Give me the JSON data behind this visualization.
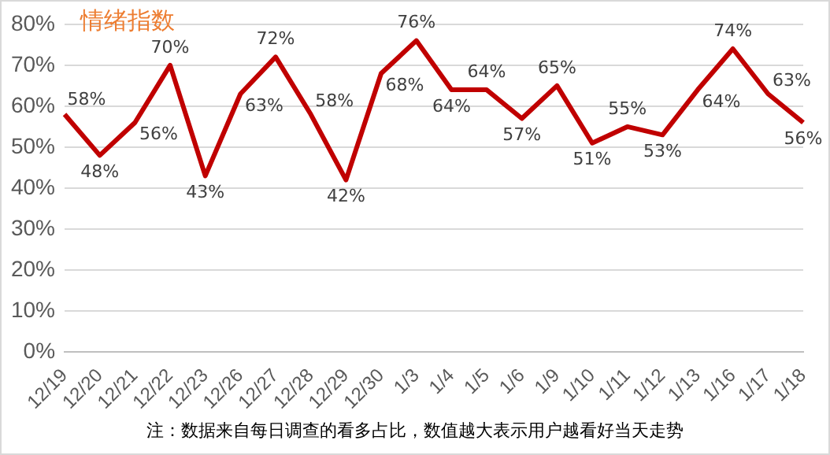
{
  "chart_data": {
    "type": "line",
    "title": "情绪指数",
    "categories": [
      "12/19",
      "12/20",
      "12/21",
      "12/22",
      "12/23",
      "12/26",
      "12/27",
      "12/28",
      "12/29",
      "12/30",
      "1/3",
      "1/4",
      "1/5",
      "1/6",
      "1/9",
      "1/10",
      "1/11",
      "1/12",
      "1/13",
      "1/16",
      "1/17",
      "1/18"
    ],
    "series": [
      {
        "color": "#c00000",
        "values": [
          58,
          48,
          56,
          70,
          43,
          63,
          72,
          58,
          42,
          68,
          76,
          64,
          64,
          57,
          65,
          51,
          55,
          53,
          64,
          74,
          63,
          56
        ],
        "value_labels": [
          "58%",
          "48%",
          "56%",
          "70%",
          "43%",
          "63%",
          "72%",
          "58%",
          "42%",
          "68%",
          "76%",
          "64%",
          "64%",
          "57%",
          "65%",
          "51%",
          "55%",
          "53%",
          "64%",
          "74%",
          "63%",
          "56%"
        ]
      }
    ],
    "ylim": [
      0,
      80
    ],
    "yticks": [
      {
        "value": 0,
        "label": "0%"
      },
      {
        "value": 10,
        "label": "10%"
      },
      {
        "value": 20,
        "label": "20%"
      },
      {
        "value": 30,
        "label": "30%"
      },
      {
        "value": 40,
        "label": "40%"
      },
      {
        "value": 50,
        "label": "50%"
      },
      {
        "value": 60,
        "label": "60%"
      },
      {
        "value": 70,
        "label": "70%"
      },
      {
        "value": 80,
        "label": "80%"
      }
    ],
    "grid": "y",
    "legend": false,
    "marker": "none",
    "line_style": "solid",
    "annotations": [
      "注：数据来自每日调查的看多占比，数值越大表示用户越看好当天走势"
    ]
  }
}
